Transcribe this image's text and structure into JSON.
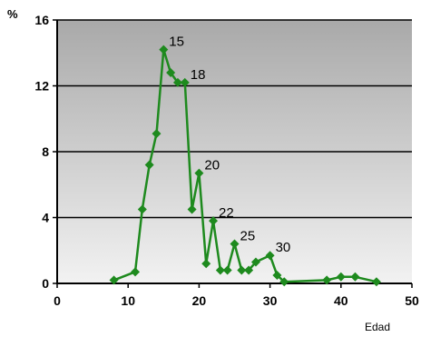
{
  "chart_data": {
    "type": "line",
    "title": "",
    "ylabel": "%",
    "xlabel": "Edad",
    "xlim": [
      0,
      50
    ],
    "ylim": [
      0,
      16
    ],
    "x_ticks": [
      0,
      10,
      20,
      30,
      40,
      50
    ],
    "y_ticks": [
      0,
      4,
      8,
      12,
      16
    ],
    "grid": "horizontal",
    "background": "gradient-gray",
    "series": [
      {
        "name": "",
        "color": "#1e8a1e",
        "marker": "diamond",
        "x": [
          8,
          11,
          12,
          13,
          14,
          15,
          16,
          17,
          18,
          19,
          20,
          21,
          22,
          23,
          24,
          25,
          26,
          27,
          28,
          30,
          31,
          32,
          38,
          40,
          42,
          45
        ],
        "y": [
          0.2,
          0.7,
          4.5,
          7.2,
          9.1,
          14.2,
          12.8,
          12.2,
          12.2,
          4.5,
          6.7,
          1.2,
          3.8,
          0.8,
          0.8,
          2.4,
          0.8,
          0.8,
          1.3,
          1.7,
          0.5,
          0.1,
          0.2,
          0.4,
          0.4,
          0.1
        ]
      }
    ],
    "annotations": [
      {
        "text": "15",
        "x": 15,
        "y": 14.2
      },
      {
        "text": "18",
        "x": 18,
        "y": 12.2
      },
      {
        "text": "20",
        "x": 20,
        "y": 6.7
      },
      {
        "text": "22",
        "x": 22,
        "y": 3.8
      },
      {
        "text": "25",
        "x": 25,
        "y": 2.4
      },
      {
        "text": "30",
        "x": 30,
        "y": 1.7
      }
    ]
  }
}
